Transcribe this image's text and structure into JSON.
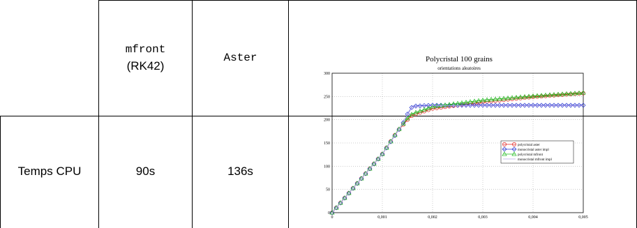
{
  "table": {
    "header": {
      "col1_line1": "mfront",
      "col1_line2": "(RK42)",
      "col2": "Aster"
    },
    "row": {
      "label": "Temps CPU",
      "mfront_value": "90s",
      "aster_value": "136s"
    }
  },
  "chart_data": {
    "type": "line",
    "title": "Polycristal 100 grains",
    "subtitle": "orientations aleatoires",
    "xlabel": "",
    "ylabel": "",
    "xlim": [
      0,
      0.005
    ],
    "ylim": [
      0,
      300
    ],
    "x_ticks": [
      "0",
      "0,001",
      "0,002",
      "0,003",
      "0,004",
      "0,005"
    ],
    "y_ticks": [
      "0",
      "50",
      "100",
      "150",
      "200",
      "250",
      "300"
    ],
    "grid": true,
    "legend_position": "center-right",
    "series": [
      {
        "name": "polycristal aster",
        "color": "#e0201c",
        "marker": "circle",
        "x": [
          0,
          0.0005,
          0.001,
          0.0013,
          0.0015,
          0.0016,
          0.002,
          0.003,
          0.004,
          0.005
        ],
        "y": [
          0,
          63,
          126,
          175,
          200,
          210,
          224,
          238,
          249,
          257
        ]
      },
      {
        "name": "monocristal aster impl",
        "color": "#2030d0",
        "marker": "diamond",
        "x": [
          0,
          0.0005,
          0.001,
          0.0014,
          0.0015,
          0.0016,
          0.002,
          0.003,
          0.004,
          0.005
        ],
        "y": [
          0,
          63,
          126,
          190,
          212,
          229,
          231,
          231,
          231,
          231
        ]
      },
      {
        "name": "polycristal mfront",
        "color": "#22bb22",
        "marker": "triangle",
        "x": [
          0,
          0.0005,
          0.001,
          0.0013,
          0.0015,
          0.0016,
          0.002,
          0.003,
          0.004,
          0.005
        ],
        "y": [
          0,
          63,
          126,
          175,
          203,
          213,
          228,
          242,
          251,
          258
        ]
      },
      {
        "name": "monocristal mfront impl",
        "color": "#b8a8e8",
        "marker": "none",
        "x": [
          0,
          0.0005,
          0.001,
          0.0014,
          0.0015,
          0.0016,
          0.002,
          0.003,
          0.004,
          0.005
        ],
        "y": [
          0,
          63,
          126,
          190,
          211,
          228,
          230,
          230,
          230,
          230
        ]
      }
    ]
  }
}
